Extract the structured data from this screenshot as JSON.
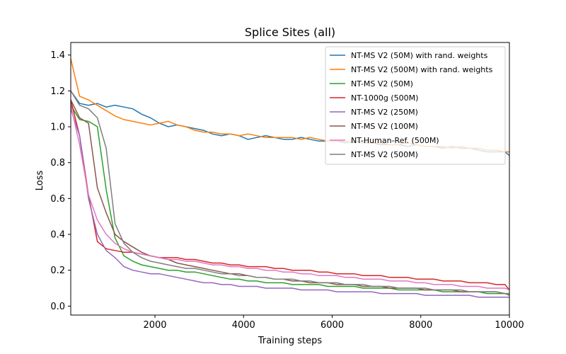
{
  "chart_data": {
    "type": "line",
    "title": "Splice Sites (all)",
    "xlabel": "Training steps",
    "ylabel": "Loss",
    "xlim": [
      100,
      10000
    ],
    "ylim": [
      -0.05,
      1.47
    ],
    "xticks": [
      2000,
      4000,
      6000,
      8000,
      10000
    ],
    "yticks": [
      0.0,
      0.2,
      0.4,
      0.6,
      0.8,
      1.0,
      1.2,
      1.4
    ],
    "grid": false,
    "legend": "top-right",
    "x": [
      100,
      300,
      500,
      700,
      900,
      1100,
      1300,
      1500,
      1700,
      1900,
      2100,
      2300,
      2500,
      2700,
      2900,
      3100,
      3300,
      3500,
      3700,
      3900,
      4100,
      4300,
      4500,
      4700,
      4900,
      5100,
      5300,
      5500,
      5700,
      5900,
      6100,
      6300,
      6500,
      6700,
      6900,
      7100,
      7300,
      7500,
      7700,
      7900,
      8100,
      8300,
      8500,
      8700,
      8900,
      9100,
      9300,
      9500,
      9700,
      9900,
      10000
    ],
    "series": [
      {
        "name": "NT-MS V2 (50M) with rand. weights",
        "color": "#1f77b4",
        "values": [
          1.2,
          1.13,
          1.12,
          1.13,
          1.11,
          1.12,
          1.11,
          1.1,
          1.07,
          1.05,
          1.02,
          1.0,
          1.01,
          1.0,
          0.99,
          0.98,
          0.96,
          0.95,
          0.96,
          0.95,
          0.93,
          0.94,
          0.95,
          0.94,
          0.93,
          0.93,
          0.94,
          0.93,
          0.92,
          0.92,
          0.92,
          0.91,
          0.92,
          0.91,
          0.91,
          0.9,
          0.9,
          0.9,
          0.89,
          0.9,
          0.89,
          0.89,
          0.88,
          0.89,
          0.88,
          0.88,
          0.87,
          0.86,
          0.86,
          0.86,
          0.84
        ]
      },
      {
        "name": "NT-MS V2 (500M) with rand. weights",
        "color": "#ff7f0e",
        "values": [
          1.38,
          1.17,
          1.15,
          1.12,
          1.09,
          1.06,
          1.04,
          1.03,
          1.02,
          1.01,
          1.02,
          1.03,
          1.01,
          1.0,
          0.98,
          0.97,
          0.97,
          0.96,
          0.96,
          0.95,
          0.96,
          0.95,
          0.94,
          0.94,
          0.94,
          0.94,
          0.93,
          0.94,
          0.93,
          0.92,
          0.92,
          0.92,
          0.91,
          0.92,
          0.91,
          0.91,
          0.9,
          0.9,
          0.91,
          0.9,
          0.89,
          0.89,
          0.89,
          0.88,
          0.89,
          0.88,
          0.88,
          0.87,
          0.87,
          0.86,
          0.86
        ]
      },
      {
        "name": "NT-MS V2 (50M)",
        "color": "#2ca02c",
        "values": [
          1.12,
          1.04,
          1.03,
          1.0,
          0.65,
          0.38,
          0.28,
          0.25,
          0.23,
          0.22,
          0.21,
          0.2,
          0.2,
          0.19,
          0.19,
          0.18,
          0.17,
          0.16,
          0.15,
          0.15,
          0.14,
          0.14,
          0.13,
          0.13,
          0.13,
          0.12,
          0.12,
          0.12,
          0.12,
          0.11,
          0.11,
          0.11,
          0.11,
          0.1,
          0.1,
          0.1,
          0.1,
          0.09,
          0.09,
          0.09,
          0.09,
          0.09,
          0.08,
          0.08,
          0.08,
          0.08,
          0.08,
          0.07,
          0.07,
          0.07,
          0.06
        ]
      },
      {
        "name": "NT-1000g (500M)",
        "color": "#d62728",
        "values": [
          1.15,
          0.95,
          0.62,
          0.36,
          0.32,
          0.31,
          0.3,
          0.3,
          0.29,
          0.28,
          0.27,
          0.27,
          0.27,
          0.26,
          0.26,
          0.25,
          0.24,
          0.24,
          0.23,
          0.23,
          0.22,
          0.22,
          0.22,
          0.21,
          0.21,
          0.2,
          0.2,
          0.2,
          0.19,
          0.19,
          0.18,
          0.18,
          0.18,
          0.17,
          0.17,
          0.17,
          0.16,
          0.16,
          0.16,
          0.15,
          0.15,
          0.15,
          0.14,
          0.14,
          0.14,
          0.13,
          0.13,
          0.13,
          0.12,
          0.12,
          0.09
        ]
      },
      {
        "name": "NT-MS V2 (250M)",
        "color": "#9467bd",
        "values": [
          1.1,
          0.95,
          0.6,
          0.4,
          0.31,
          0.27,
          0.22,
          0.2,
          0.19,
          0.18,
          0.18,
          0.17,
          0.16,
          0.15,
          0.14,
          0.13,
          0.13,
          0.12,
          0.12,
          0.11,
          0.11,
          0.11,
          0.1,
          0.1,
          0.1,
          0.1,
          0.09,
          0.09,
          0.09,
          0.09,
          0.08,
          0.08,
          0.08,
          0.08,
          0.08,
          0.07,
          0.07,
          0.07,
          0.07,
          0.07,
          0.06,
          0.06,
          0.06,
          0.06,
          0.06,
          0.06,
          0.05,
          0.05,
          0.05,
          0.05,
          0.05
        ]
      },
      {
        "name": "NT-MS V2 (100M)",
        "color": "#8c564b",
        "values": [
          1.15,
          1.05,
          1.02,
          0.66,
          0.52,
          0.4,
          0.36,
          0.33,
          0.3,
          0.28,
          0.27,
          0.26,
          0.24,
          0.23,
          0.22,
          0.21,
          0.2,
          0.19,
          0.18,
          0.18,
          0.17,
          0.16,
          0.16,
          0.15,
          0.15,
          0.14,
          0.14,
          0.13,
          0.13,
          0.13,
          0.12,
          0.12,
          0.12,
          0.11,
          0.11,
          0.11,
          0.1,
          0.1,
          0.1,
          0.1,
          0.09,
          0.09,
          0.09,
          0.09,
          0.08,
          0.08,
          0.08,
          0.08,
          0.08,
          0.07,
          0.07
        ]
      },
      {
        "name": "NT-Human-Ref. (500M)",
        "color": "#e377c2",
        "values": [
          1.12,
          0.9,
          0.62,
          0.48,
          0.4,
          0.35,
          0.32,
          0.3,
          0.29,
          0.28,
          0.27,
          0.26,
          0.26,
          0.25,
          0.25,
          0.24,
          0.23,
          0.23,
          0.22,
          0.22,
          0.21,
          0.21,
          0.2,
          0.2,
          0.19,
          0.19,
          0.18,
          0.18,
          0.17,
          0.17,
          0.17,
          0.16,
          0.16,
          0.15,
          0.15,
          0.15,
          0.14,
          0.14,
          0.14,
          0.13,
          0.13,
          0.12,
          0.12,
          0.12,
          0.11,
          0.11,
          0.11,
          0.1,
          0.1,
          0.1,
          0.09
        ]
      },
      {
        "name": "NT-MS V2 (500M)",
        "color": "#7f7f7f",
        "values": [
          1.2,
          1.12,
          1.1,
          1.05,
          0.88,
          0.46,
          0.35,
          0.3,
          0.27,
          0.25,
          0.24,
          0.23,
          0.22,
          0.21,
          0.21,
          0.2,
          0.19,
          0.18,
          0.18,
          0.17,
          0.17,
          0.16,
          0.16,
          0.15,
          0.15,
          0.15,
          0.14,
          0.14,
          0.13,
          0.13,
          0.13,
          0.12,
          0.12,
          0.12,
          0.11,
          0.11,
          0.11,
          0.1,
          0.1,
          0.1,
          0.1,
          0.09,
          0.09,
          0.09,
          0.09,
          0.08,
          0.08,
          0.08,
          0.08,
          0.07,
          0.07
        ]
      }
    ]
  }
}
